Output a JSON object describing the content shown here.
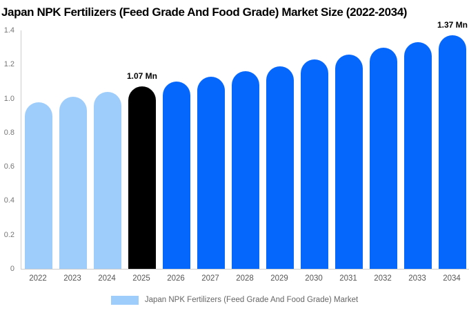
{
  "chart_data": {
    "type": "bar",
    "title": "Japan NPK Fertilizers (Feed Grade And Food Grade) Market Size (2022-2034)",
    "categories": [
      "2022",
      "2023",
      "2024",
      "2025",
      "2026",
      "2027",
      "2028",
      "2029",
      "2030",
      "2031",
      "2032",
      "2033",
      "2034"
    ],
    "values": [
      0.98,
      1.01,
      1.04,
      1.07,
      1.1,
      1.13,
      1.16,
      1.19,
      1.23,
      1.26,
      1.3,
      1.33,
      1.37
    ],
    "unit": "Mn",
    "xlabel": "",
    "ylabel": "",
    "ylim": [
      0,
      1.4
    ],
    "ytick_labels": [
      "0",
      "0.2",
      "0.4",
      "0.6",
      "0.8",
      "1.0",
      "1.2",
      "1.4"
    ],
    "grid": false,
    "bar_colors": [
      "#9ECDFB",
      "#9ECDFB",
      "#9ECDFB",
      "#000000",
      "#0667FC",
      "#0667FC",
      "#0667FC",
      "#0667FC",
      "#0667FC",
      "#0667FC",
      "#0667FC",
      "#0667FC",
      "#0667FC"
    ],
    "color_meaning": {
      "historical": "#9ECDFB",
      "base_year": "#000000",
      "forecast": "#0667FC"
    },
    "annotations": [
      {
        "category": "2025",
        "text": "1.07 Mn"
      },
      {
        "category": "2034",
        "text": "1.37 Mn"
      }
    ],
    "legend": {
      "position": "bottom",
      "label": "Japan NPK Fertilizers (Feed Grade And Food Grade) Market",
      "swatch_color": "#9ECDFB"
    },
    "axis_color": "#CCCCCC",
    "ytick_color": "#757575",
    "xtick_color": "#555555"
  }
}
